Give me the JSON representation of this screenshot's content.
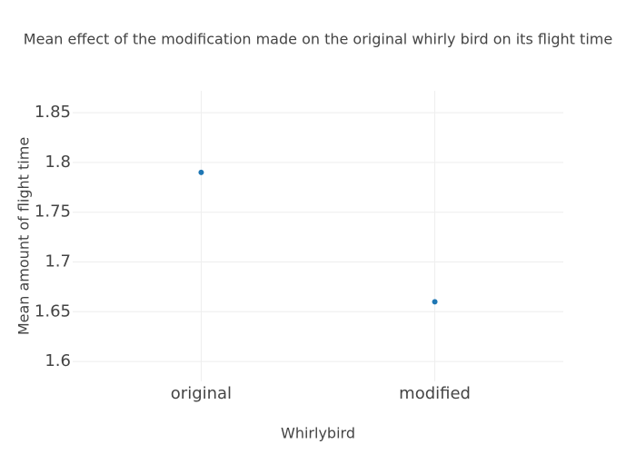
{
  "chart_data": {
    "type": "scatter",
    "title": "Mean effect of the modification made on the original whirly bird on its flight time",
    "x_label": "Whirlybird",
    "y_label": "Mean amount of flight time",
    "categories": [
      "original",
      "modified"
    ],
    "values": [
      1.79,
      1.66
    ],
    "color": "#1f77b4",
    "ylim": [
      1.58,
      1.872
    ],
    "yticks": [
      1.6,
      1.65,
      1.7,
      1.75,
      1.8,
      1.85
    ],
    "grid": true
  }
}
